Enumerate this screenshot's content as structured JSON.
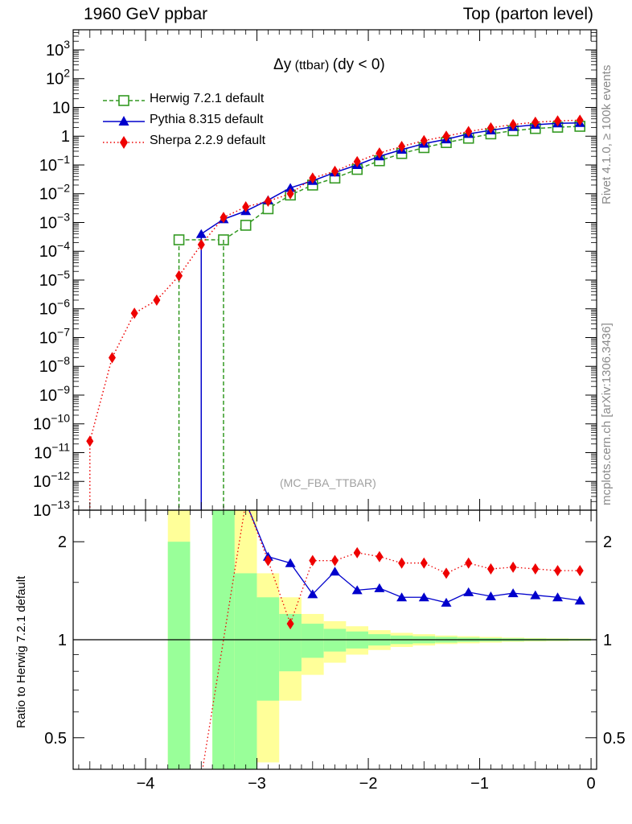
{
  "header": {
    "left": "1960 GeV ppbar",
    "right": "Top (parton level)"
  },
  "side_labels": {
    "rivet": "Rivet 4.1.0, ≥ 100k events",
    "mcplots": "mcplots.cern.ch [arXiv:1306.3436]"
  },
  "chart_data": [
    {
      "type": "line",
      "title_symbol": "Δy",
      "title_small": " (ttbar) ",
      "title_rest": "(dy < 0)",
      "annotation": "(MC_FBA_TTBAR)",
      "log_y": true,
      "xlim": [
        -4.65,
        0.05
      ],
      "ylim": [
        1e-13,
        5000
      ],
      "x_ticks": [
        "−4",
        "−3",
        "−2",
        "−1",
        "0"
      ],
      "y_ticks": [
        "10^3",
        "10^2",
        "10",
        "1",
        "10^-1",
        "10^-2",
        "10^-3",
        "10^-4",
        "10^-5",
        "10^-6",
        "10^-7",
        "10^-8",
        "10^-9",
        "10^-10",
        "10^-11",
        "10^-12",
        "10^-13"
      ],
      "series": [
        {
          "name": "Herwig 7.2.1 default",
          "color": "#339922",
          "marker": "open-square",
          "line": "dashed",
          "x": [
            -3.7,
            -3.3,
            -3.1,
            -2.9,
            -2.7,
            -2.5,
            -2.3,
            -2.1,
            -1.9,
            -1.7,
            -1.5,
            -1.3,
            -1.1,
            -0.9,
            -0.7,
            -0.5,
            -0.3,
            -0.1
          ],
          "y": [
            0.00025,
            0.00025,
            0.0008,
            0.003,
            0.009,
            0.02,
            0.035,
            0.07,
            0.14,
            0.25,
            0.4,
            0.6,
            0.85,
            1.2,
            1.55,
            1.85,
            2.05,
            2.2
          ]
        },
        {
          "name": "Pythia 8.315 default",
          "color": "#0000cc",
          "marker": "filled-triangle",
          "line": "solid",
          "x": [
            -3.5,
            -3.3,
            -3.1,
            -2.9,
            -2.7,
            -2.5,
            -2.3,
            -2.1,
            -1.9,
            -1.7,
            -1.5,
            -1.3,
            -1.1,
            -0.9,
            -0.7,
            -0.5,
            -0.3,
            -0.1
          ],
          "y": [
            0.0004,
            0.0013,
            0.0025,
            0.006,
            0.016,
            0.028,
            0.055,
            0.1,
            0.2,
            0.34,
            0.55,
            0.78,
            1.2,
            1.6,
            2.1,
            2.5,
            2.8,
            2.9
          ]
        },
        {
          "name": "Sherpa 2.2.9 default",
          "color": "#ee0000",
          "marker": "filled-diamond",
          "line": "dotted",
          "x": [
            -4.5,
            -4.3,
            -4.1,
            -3.9,
            -3.7,
            -3.5,
            -3.3,
            -3.1,
            -2.9,
            -2.7,
            -2.5,
            -2.3,
            -2.1,
            -1.9,
            -1.7,
            -1.5,
            -1.3,
            -1.1,
            -0.9,
            -0.7,
            -0.5,
            -0.3,
            -0.1
          ],
          "y": [
            2.5e-11,
            2e-08,
            7e-07,
            2e-06,
            1.4e-05,
            0.00017,
            0.0015,
            0.0035,
            0.0055,
            0.01,
            0.035,
            0.06,
            0.13,
            0.26,
            0.44,
            0.7,
            1.0,
            1.45,
            1.95,
            2.55,
            3.05,
            3.4,
            3.6
          ]
        }
      ]
    },
    {
      "type": "line",
      "ylabel": "Ratio to Herwig 7.2.1 default",
      "log_y": true,
      "xlim": [
        -4.65,
        0.05
      ],
      "ylim": [
        0.4,
        2.5
      ],
      "y_ticks": [
        "2",
        "1",
        "0.5"
      ],
      "x_ticks": [
        "−4",
        "−3",
        "−2",
        "−1",
        "0"
      ],
      "uncertainty_bands": {
        "bins": [
          -3.8,
          -3.6,
          -3.4,
          -3.2,
          -3.0,
          -2.8,
          -2.6,
          -2.4,
          -2.2,
          -2.0,
          -1.8,
          -1.6,
          -1.4,
          -1.2,
          -1.0,
          -0.8,
          -0.6,
          -0.4,
          -0.2,
          0.0
        ],
        "inner": [
          [
            0.0,
            2.0
          ],
          null,
          [
            0.0,
            2.5
          ],
          [
            0.0,
            1.6
          ],
          [
            0.65,
            1.35
          ],
          [
            0.8,
            1.2
          ],
          [
            0.88,
            1.12
          ],
          [
            0.92,
            1.08
          ],
          [
            0.94,
            1.06
          ],
          [
            0.96,
            1.04
          ],
          [
            0.97,
            1.03
          ],
          [
            0.975,
            1.025
          ],
          [
            0.98,
            1.02
          ],
          [
            0.985,
            1.015
          ],
          [
            0.988,
            1.012
          ],
          [
            0.99,
            1.01
          ],
          [
            0.992,
            1.008
          ],
          [
            0.993,
            1.007
          ],
          [
            0.994,
            1.006
          ]
        ],
        "outer": [
          [
            0.0,
            2.5
          ],
          null,
          [
            0.0,
            2.5
          ],
          [
            0.0,
            2.5
          ],
          [
            0.42,
            1.6
          ],
          [
            0.65,
            1.35
          ],
          [
            0.78,
            1.2
          ],
          [
            0.85,
            1.14
          ],
          [
            0.9,
            1.1
          ],
          [
            0.93,
            1.07
          ],
          [
            0.95,
            1.05
          ],
          [
            0.96,
            1.04
          ],
          [
            0.97,
            1.03
          ],
          [
            0.975,
            1.025
          ],
          [
            0.98,
            1.02
          ],
          [
            0.985,
            1.015
          ],
          [
            0.988,
            1.012
          ],
          [
            0.99,
            1.01
          ],
          [
            0.992,
            1.008
          ]
        ],
        "inner_color": "#99ff99",
        "outer_color": "#ffff99"
      },
      "series": [
        {
          "name": "Pythia 8.315 default",
          "color": "#0000cc",
          "marker": "filled-triangle",
          "x": [
            -2.9,
            -2.7,
            -2.5,
            -2.3,
            -2.1,
            -1.9,
            -1.7,
            -1.5,
            -1.3,
            -1.1,
            -0.9,
            -0.7,
            -0.5,
            -0.3,
            -0.1
          ],
          "y": [
            1.8,
            1.72,
            1.38,
            1.62,
            1.42,
            1.44,
            1.35,
            1.35,
            1.3,
            1.4,
            1.36,
            1.39,
            1.37,
            1.35,
            1.32
          ]
        },
        {
          "name": "Sherpa 2.2.9 default",
          "color": "#ee0000",
          "marker": "filled-diamond",
          "x": [
            -2.9,
            -2.7,
            -2.5,
            -2.3,
            -2.1,
            -1.9,
            -1.7,
            -1.5,
            -1.3,
            -1.1,
            -0.9,
            -0.7,
            -0.5,
            -0.3,
            -0.1
          ],
          "y": [
            1.75,
            1.12,
            1.75,
            1.75,
            1.85,
            1.8,
            1.72,
            1.72,
            1.6,
            1.72,
            1.65,
            1.67,
            1.65,
            1.63,
            1.63
          ]
        }
      ]
    }
  ]
}
